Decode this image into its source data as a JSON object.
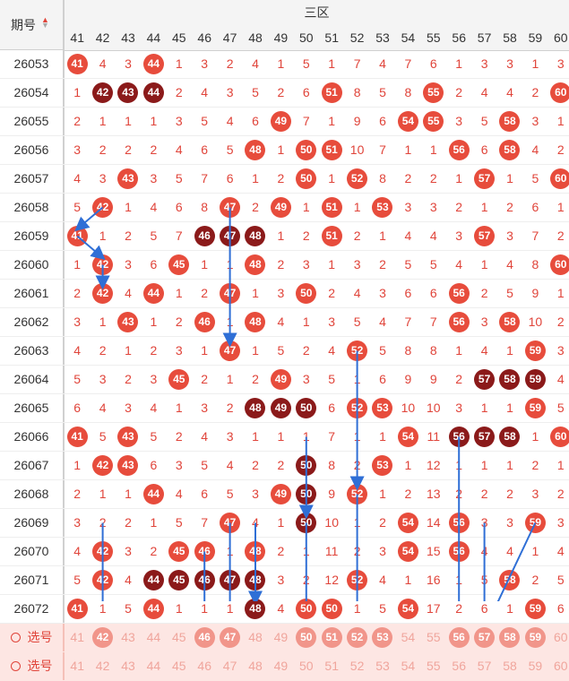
{
  "header": {
    "period_label": "期号",
    "zone_label": "三区"
  },
  "columns": [
    "41",
    "42",
    "43",
    "44",
    "45",
    "46",
    "47",
    "48",
    "49",
    "50",
    "51",
    "52",
    "53",
    "54",
    "55",
    "56",
    "57",
    "58",
    "59",
    "60"
  ],
  "rows": [
    {
      "id": "26053",
      "cells": [
        "41r",
        "4",
        "3",
        "44r",
        "1",
        "3",
        "2",
        "4",
        "1",
        "5",
        "1",
        "7",
        "4",
        "7",
        "6",
        "1",
        "3",
        "3",
        "1",
        "3"
      ]
    },
    {
      "id": "26054",
      "cells": [
        "1",
        "42d",
        "43d",
        "44d",
        "2",
        "4",
        "3",
        "5",
        "2",
        "6",
        "51r",
        "8",
        "5",
        "8",
        "55r",
        "2",
        "4",
        "4",
        "2",
        "60r"
      ]
    },
    {
      "id": "26055",
      "cells": [
        "2",
        "1",
        "1",
        "1",
        "3",
        "5",
        "4",
        "6",
        "49r",
        "7",
        "1",
        "9",
        "6",
        "54r",
        "55r",
        "3",
        "5",
        "58r",
        "3",
        "1"
      ]
    },
    {
      "id": "26056",
      "cells": [
        "3",
        "2",
        "2",
        "2",
        "4",
        "6",
        "5",
        "48r",
        "1",
        "50r",
        "51r",
        "10",
        "7",
        "1",
        "1",
        "56r",
        "6",
        "58r",
        "4",
        "2"
      ]
    },
    {
      "id": "26057",
      "cells": [
        "4",
        "3",
        "43r",
        "3",
        "5",
        "7",
        "6",
        "1",
        "2",
        "50r",
        "1",
        "52r",
        "8",
        "2",
        "2",
        "1",
        "57r",
        "1",
        "5",
        "60r"
      ]
    },
    {
      "id": "26058",
      "cells": [
        "5",
        "42r",
        "1",
        "4",
        "6",
        "8",
        "47r",
        "2",
        "49r",
        "1",
        "51r",
        "1",
        "53r",
        "3",
        "3",
        "2",
        "1",
        "2",
        "6",
        "1"
      ]
    },
    {
      "id": "26059",
      "cells": [
        "41r",
        "1",
        "2",
        "5",
        "7",
        "46d",
        "47d",
        "48d",
        "1",
        "2",
        "51r",
        "2",
        "1",
        "4",
        "4",
        "3",
        "57r",
        "3",
        "7",
        "2"
      ]
    },
    {
      "id": "26060",
      "cells": [
        "1",
        "42r",
        "3",
        "6",
        "45r",
        "1",
        "1",
        "48r",
        "2",
        "3",
        "1",
        "3",
        "2",
        "5",
        "5",
        "4",
        "1",
        "4",
        "8",
        "60r"
      ]
    },
    {
      "id": "26061",
      "cells": [
        "2",
        "42r",
        "4",
        "44r",
        "1",
        "2",
        "47r",
        "1",
        "3",
        "50r",
        "2",
        "4",
        "3",
        "6",
        "6",
        "56r",
        "2",
        "5",
        "9",
        "1"
      ]
    },
    {
      "id": "26062",
      "cells": [
        "3",
        "1",
        "43r",
        "1",
        "2",
        "46r",
        "1",
        "48r",
        "4",
        "1",
        "3",
        "5",
        "4",
        "7",
        "7",
        "56r",
        "3",
        "58r",
        "10",
        "2"
      ]
    },
    {
      "id": "26063",
      "cells": [
        "4",
        "2",
        "1",
        "2",
        "3",
        "1",
        "47r",
        "1",
        "5",
        "2",
        "4",
        "52r",
        "5",
        "8",
        "8",
        "1",
        "4",
        "1",
        "59r",
        "3"
      ]
    },
    {
      "id": "26064",
      "cells": [
        "5",
        "3",
        "2",
        "3",
        "45r",
        "2",
        "1",
        "2",
        "49r",
        "3",
        "5",
        "1",
        "6",
        "9",
        "9",
        "2",
        "57d",
        "58d",
        "59d",
        "4"
      ]
    },
    {
      "id": "26065",
      "cells": [
        "6",
        "4",
        "3",
        "4",
        "1",
        "3",
        "2",
        "48d",
        "49d",
        "50d",
        "6",
        "52r",
        "53r",
        "10",
        "10",
        "3",
        "1",
        "1",
        "59r",
        "5"
      ]
    },
    {
      "id": "26066",
      "cells": [
        "41r",
        "5",
        "43r",
        "5",
        "2",
        "4",
        "3",
        "1",
        "1",
        "1",
        "7",
        "1",
        "1",
        "54r",
        "11",
        "56d",
        "57d",
        "58d",
        "1",
        "60r"
      ]
    },
    {
      "id": "26067",
      "cells": [
        "1",
        "42r",
        "43r",
        "6",
        "3",
        "5",
        "4",
        "2",
        "2",
        "50d",
        "8",
        "2",
        "53r",
        "1",
        "12",
        "1",
        "1",
        "1",
        "2",
        "1"
      ]
    },
    {
      "id": "26068",
      "cells": [
        "2",
        "1",
        "1",
        "44r",
        "4",
        "6",
        "5",
        "3",
        "49r",
        "50d",
        "9",
        "52r",
        "1",
        "2",
        "13",
        "2",
        "2",
        "2",
        "3",
        "2"
      ]
    },
    {
      "id": "26069",
      "cells": [
        "3",
        "2",
        "2",
        "1",
        "5",
        "7",
        "47r",
        "4",
        "1",
        "50d",
        "10",
        "1",
        "2",
        "54r",
        "14",
        "56r",
        "3",
        "3",
        "59r",
        "3"
      ]
    },
    {
      "id": "26070",
      "cells": [
        "4",
        "42r",
        "3",
        "2",
        "45r",
        "46r",
        "1",
        "48r",
        "2",
        "1",
        "11",
        "2",
        "3",
        "54r",
        "15",
        "56r",
        "4",
        "4",
        "1",
        "4"
      ]
    },
    {
      "id": "26071",
      "cells": [
        "5",
        "42r",
        "4",
        "44d",
        "45d",
        "46d",
        "47d",
        "48d",
        "3",
        "2",
        "12",
        "52r",
        "4",
        "1",
        "16",
        "1",
        "5",
        "58r",
        "2",
        "5"
      ]
    },
    {
      "id": "26072",
      "cells": [
        "41r",
        "1",
        "5",
        "44r",
        "1",
        "1",
        "1",
        "48d",
        "4",
        "50r",
        "50r",
        "1",
        "5",
        "54r",
        "17",
        "2",
        "6",
        "1",
        "59r",
        "6"
      ]
    }
  ],
  "select_rows": [
    {
      "label": "选号",
      "cells": [
        "41",
        "42r",
        "43",
        "44",
        "45",
        "46r",
        "47r",
        "48",
        "49",
        "50r",
        "51r",
        "52r",
        "53r",
        "54",
        "55",
        "56r",
        "57r",
        "58r",
        "59r",
        "60"
      ]
    },
    {
      "label": "选号",
      "cells": [
        "41",
        "42",
        "43",
        "44",
        "45",
        "46",
        "47",
        "48",
        "49",
        "50",
        "51",
        "52",
        "53",
        "54",
        "55",
        "56",
        "57",
        "58",
        "59",
        "60"
      ]
    }
  ]
}
